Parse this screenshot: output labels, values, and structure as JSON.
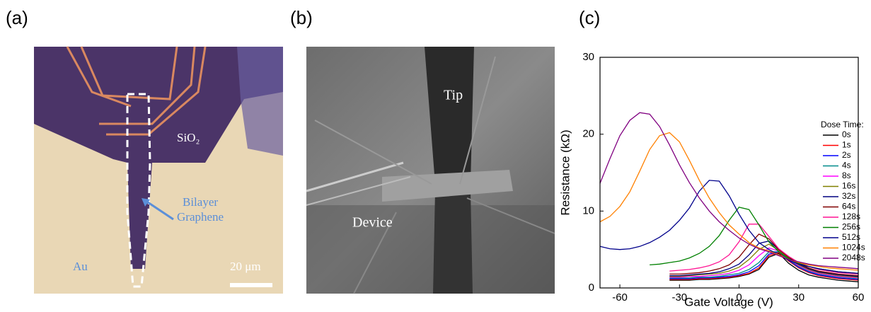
{
  "panels": {
    "a": {
      "label": "(a)",
      "annotations": [
        "SiO₂",
        "Bilayer",
        "Graphene",
        "Au",
        "20 μm"
      ]
    },
    "b": {
      "label": "(b)",
      "annotations": [
        "Tip",
        "Device"
      ]
    }
  },
  "chart_data": {
    "type": "line",
    "panel_label": "(c)",
    "x_label": "Gate Voltage (V)",
    "y_label": "Resistance (kΩ)",
    "legend_title": "Dose Time:",
    "x": [
      -70,
      -65,
      -60,
      -55,
      -50,
      -45,
      -40,
      -35,
      -30,
      -25,
      -20,
      -15,
      -10,
      -5,
      0,
      5,
      10,
      15,
      20,
      25,
      30,
      35,
      40,
      45,
      50,
      55,
      60
    ],
    "xlim": [
      -70,
      60
    ],
    "xticks": [
      -60,
      -30,
      0,
      30,
      60
    ],
    "ylim": [
      0,
      30
    ],
    "yticks": [
      0,
      10,
      20,
      30
    ],
    "series": [
      {
        "name": "0s",
        "color": "#000000",
        "values": [
          null,
          null,
          null,
          null,
          null,
          null,
          null,
          1.0,
          1.0,
          1.0,
          1.1,
          1.1,
          1.2,
          1.3,
          1.5,
          1.8,
          2.4,
          4.0,
          4.5,
          3.2,
          2.3,
          1.7,
          1.4,
          1.2,
          1.0,
          0.9,
          0.8
        ]
      },
      {
        "name": "1s",
        "color": "#ff0000",
        "values": [
          null,
          null,
          null,
          null,
          null,
          null,
          null,
          1.1,
          1.1,
          1.1,
          1.2,
          1.2,
          1.3,
          1.4,
          1.6,
          1.9,
          2.6,
          4.2,
          4.6,
          3.5,
          2.6,
          2.0,
          1.6,
          1.4,
          1.2,
          1.1,
          1.0
        ]
      },
      {
        "name": "2s",
        "color": "#0000ff",
        "values": [
          null,
          null,
          null,
          null,
          null,
          null,
          null,
          1.2,
          1.2,
          1.2,
          1.3,
          1.3,
          1.4,
          1.5,
          1.7,
          2.1,
          2.9,
          4.4,
          4.7,
          3.6,
          2.7,
          2.1,
          1.7,
          1.5,
          1.3,
          1.2,
          1.1
        ]
      },
      {
        "name": "4s",
        "color": "#008b8b",
        "values": [
          null,
          null,
          null,
          null,
          null,
          null,
          null,
          1.3,
          1.3,
          1.3,
          1.4,
          1.4,
          1.5,
          1.7,
          1.9,
          2.4,
          3.3,
          4.7,
          4.7,
          3.7,
          2.8,
          2.2,
          1.8,
          1.6,
          1.4,
          1.3,
          1.2
        ]
      },
      {
        "name": "8s",
        "color": "#ff00ff",
        "values": [
          null,
          null,
          null,
          null,
          null,
          null,
          null,
          1.4,
          1.4,
          1.5,
          1.5,
          1.6,
          1.7,
          1.9,
          2.3,
          3.0,
          4.2,
          5.2,
          4.8,
          3.8,
          2.9,
          2.3,
          1.9,
          1.7,
          1.5,
          1.4,
          1.3
        ]
      },
      {
        "name": "16s",
        "color": "#808000",
        "values": [
          null,
          null,
          null,
          null,
          null,
          null,
          null,
          1.5,
          1.5,
          1.6,
          1.7,
          1.8,
          1.9,
          2.2,
          2.7,
          3.7,
          5.0,
          5.7,
          4.9,
          3.9,
          3.0,
          2.4,
          2.0,
          1.8,
          1.6,
          1.5,
          1.4
        ]
      },
      {
        "name": "32s",
        "color": "#000080",
        "values": [
          null,
          null,
          null,
          null,
          null,
          null,
          null,
          1.6,
          1.6,
          1.7,
          1.8,
          1.9,
          2.1,
          2.5,
          3.1,
          4.3,
          5.8,
          6.1,
          5.0,
          4.0,
          3.1,
          2.5,
          2.1,
          1.9,
          1.7,
          1.6,
          1.5
        ]
      },
      {
        "name": "64s",
        "color": "#800000",
        "values": [
          null,
          null,
          null,
          null,
          null,
          null,
          null,
          1.8,
          1.8,
          1.9,
          2.0,
          2.2,
          2.5,
          3.0,
          4.0,
          5.6,
          7.0,
          6.4,
          5.0,
          4.0,
          3.2,
          2.6,
          2.2,
          2.0,
          1.8,
          1.7,
          1.6
        ]
      },
      {
        "name": "128s",
        "color": "#ff1493",
        "values": [
          null,
          null,
          null,
          null,
          null,
          null,
          null,
          2.2,
          2.3,
          2.4,
          2.6,
          2.9,
          3.4,
          4.3,
          6.0,
          8.3,
          8.3,
          6.7,
          5.1,
          4.1,
          3.3,
          2.8,
          2.4,
          2.2,
          2.0,
          1.9,
          1.8
        ]
      },
      {
        "name": "256s",
        "color": "#008000",
        "values": [
          null,
          null,
          null,
          null,
          null,
          3.0,
          3.1,
          3.3,
          3.5,
          3.9,
          4.5,
          5.4,
          6.8,
          8.8,
          10.5,
          10.2,
          8.2,
          6.0,
          4.7,
          3.8,
          3.2,
          2.8,
          2.5,
          2.3,
          2.1,
          2.0,
          1.9
        ]
      },
      {
        "name": "512s",
        "color": "#00008b",
        "values": [
          5.4,
          5.1,
          5.0,
          5.1,
          5.4,
          5.9,
          6.6,
          7.5,
          8.8,
          10.4,
          12.6,
          14.0,
          13.9,
          12.0,
          9.6,
          7.5,
          5.9,
          5.0,
          4.3,
          3.6,
          3.1,
          2.8,
          2.5,
          2.3,
          2.1,
          2.0,
          1.9
        ]
      },
      {
        "name": "1024s",
        "color": "#ff8000",
        "values": [
          8.6,
          9.3,
          10.6,
          12.5,
          15.2,
          18.0,
          19.8,
          20.2,
          19.0,
          16.6,
          14.0,
          11.7,
          9.8,
          8.2,
          7.0,
          5.9,
          5.2,
          4.8,
          4.3,
          3.7,
          3.3,
          3.0,
          2.8,
          2.6,
          2.5,
          2.4,
          2.3
        ]
      },
      {
        "name": "2048s",
        "color": "#800080",
        "values": [
          13.6,
          16.8,
          19.8,
          21.8,
          22.8,
          22.6,
          21.0,
          18.6,
          16.0,
          13.7,
          11.7,
          10.0,
          8.6,
          7.5,
          6.5,
          5.7,
          5.1,
          4.7,
          4.2,
          3.7,
          3.4,
          3.1,
          2.9,
          2.8,
          2.7,
          2.6,
          2.5
        ]
      }
    ]
  }
}
